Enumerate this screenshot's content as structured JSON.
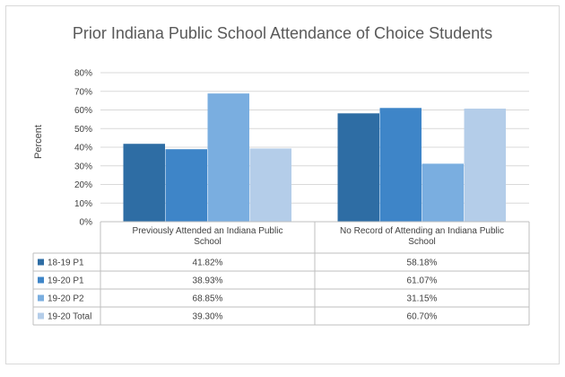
{
  "chart_data": {
    "type": "bar",
    "title": "Prior Indiana Public School Attendance of Choice Students",
    "ylabel": "Percent",
    "xlabel": "",
    "ylim": [
      0,
      80
    ],
    "yticks": [
      "0%",
      "10%",
      "20%",
      "30%",
      "40%",
      "50%",
      "60%",
      "70%",
      "80%"
    ],
    "categories": [
      [
        "Previously Attended an Indiana Public",
        "School"
      ],
      [
        "No Record of Attending an Indiana Public",
        "School"
      ]
    ],
    "series": [
      {
        "name": "18-19 P1",
        "values": [
          41.82,
          58.18
        ],
        "labels": [
          "41.82%",
          "58.18%"
        ],
        "color": "#2e6da4"
      },
      {
        "name": "19-20 P1",
        "values": [
          38.93,
          61.07
        ],
        "labels": [
          "38.93%",
          "61.07%"
        ],
        "color": "#3e85c8"
      },
      {
        "name": "19-20 P2",
        "values": [
          68.85,
          31.15
        ],
        "labels": [
          "68.85%",
          "31.15%"
        ],
        "color": "#7aaee0"
      },
      {
        "name": "19-20 Total",
        "values": [
          39.3,
          60.7
        ],
        "labels": [
          "39.30%",
          "60.70%"
        ],
        "color": "#b4cde9"
      }
    ],
    "gridlines": true,
    "legend": "data-table"
  }
}
